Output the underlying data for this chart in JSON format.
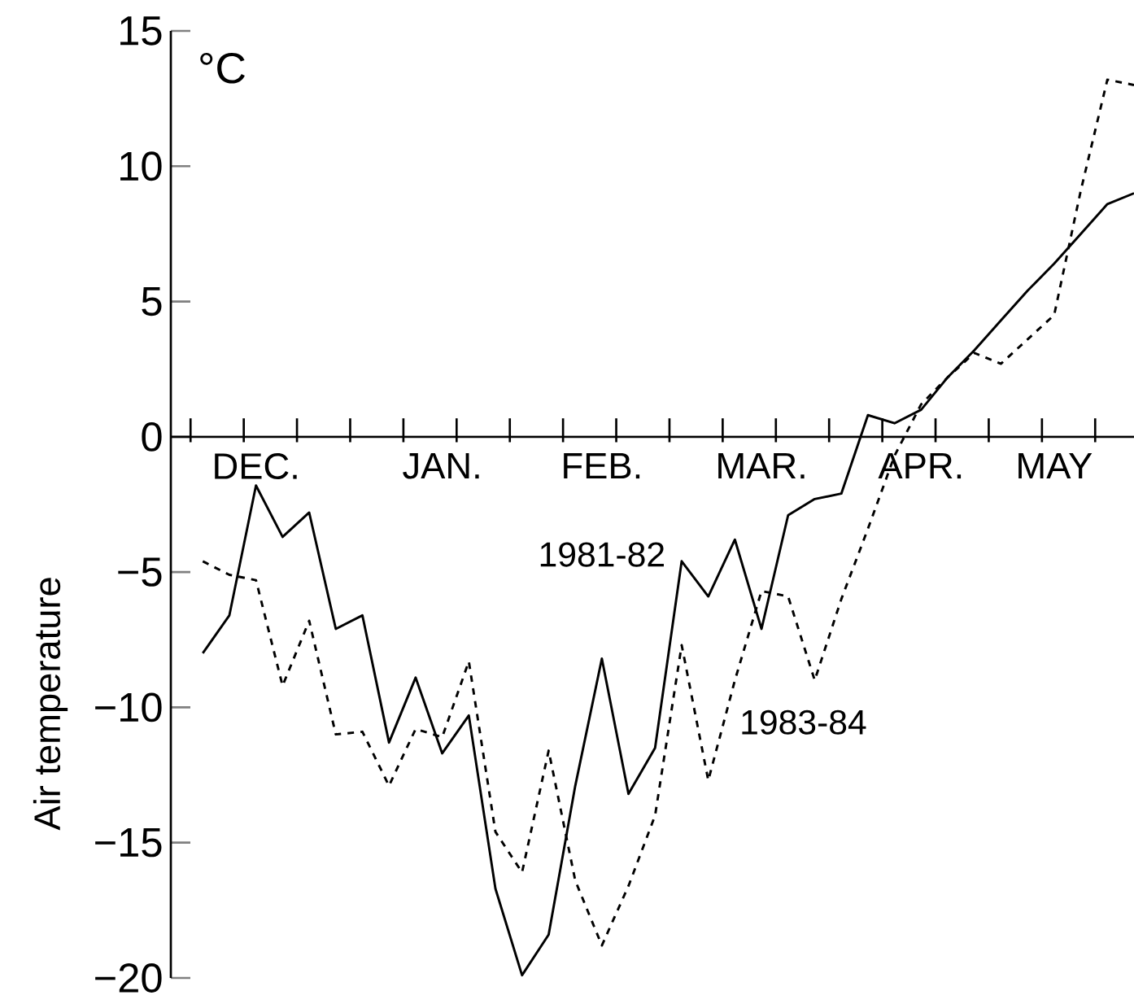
{
  "chart_data": {
    "type": "line",
    "ylabel": "Air temperature",
    "annotations": [
      "°C"
    ],
    "categories": [
      null,
      null,
      "DEC.",
      null,
      null,
      null,
      null,
      null,
      null,
      "JAN.",
      null,
      null,
      null,
      null,
      null,
      "FEB.",
      null,
      null,
      null,
      null,
      null,
      "MAR.",
      null,
      null,
      null,
      null,
      null,
      "APR.",
      null,
      null,
      null,
      null,
      "MAY",
      null,
      null,
      null
    ],
    "ylim": [
      -20,
      15
    ],
    "yticks": [
      {
        "value": -20,
        "label": "−20"
      },
      {
        "value": -15,
        "label": "−15"
      },
      {
        "value": -10,
        "label": "−10"
      },
      {
        "value": -5,
        "label": "−5"
      },
      0,
      5,
      10,
      15
    ],
    "grid": false,
    "legend": false,
    "series": [
      {
        "name": "1981-82",
        "color": "#000000",
        "line_style": "solid",
        "values": [
          -8.0,
          -6.6,
          -1.8,
          -3.7,
          -2.8,
          -7.1,
          -6.6,
          -11.3,
          -8.9,
          -11.7,
          -10.3,
          -16.7,
          -19.9,
          -18.4,
          -12.9,
          -8.2,
          -13.2,
          -11.5,
          -4.6,
          -5.9,
          -3.8,
          -7.1,
          -2.9,
          -2.3,
          -2.1,
          0.8,
          0.5,
          1.0,
          2.2,
          3.2,
          4.3,
          5.4,
          6.4,
          7.5,
          8.6,
          9.0
        ]
      },
      {
        "name": "1983-84",
        "color": "#000000",
        "line_style": "dashed",
        "values": [
          -4.6,
          -5.1,
          -5.3,
          -9.2,
          -6.8,
          -11.0,
          -10.9,
          -12.9,
          -10.8,
          -11.1,
          -8.3,
          -14.6,
          -16.1,
          -11.6,
          -16.4,
          -18.8,
          -16.6,
          -14.0,
          -7.7,
          -12.7,
          -9.0,
          -5.7,
          -5.9,
          -9.0,
          -6.0,
          -3.4,
          -0.7,
          1.2,
          2.2,
          3.1,
          2.7,
          3.6,
          4.5,
          9.1,
          13.2,
          13.0
        ]
      }
    ]
  }
}
